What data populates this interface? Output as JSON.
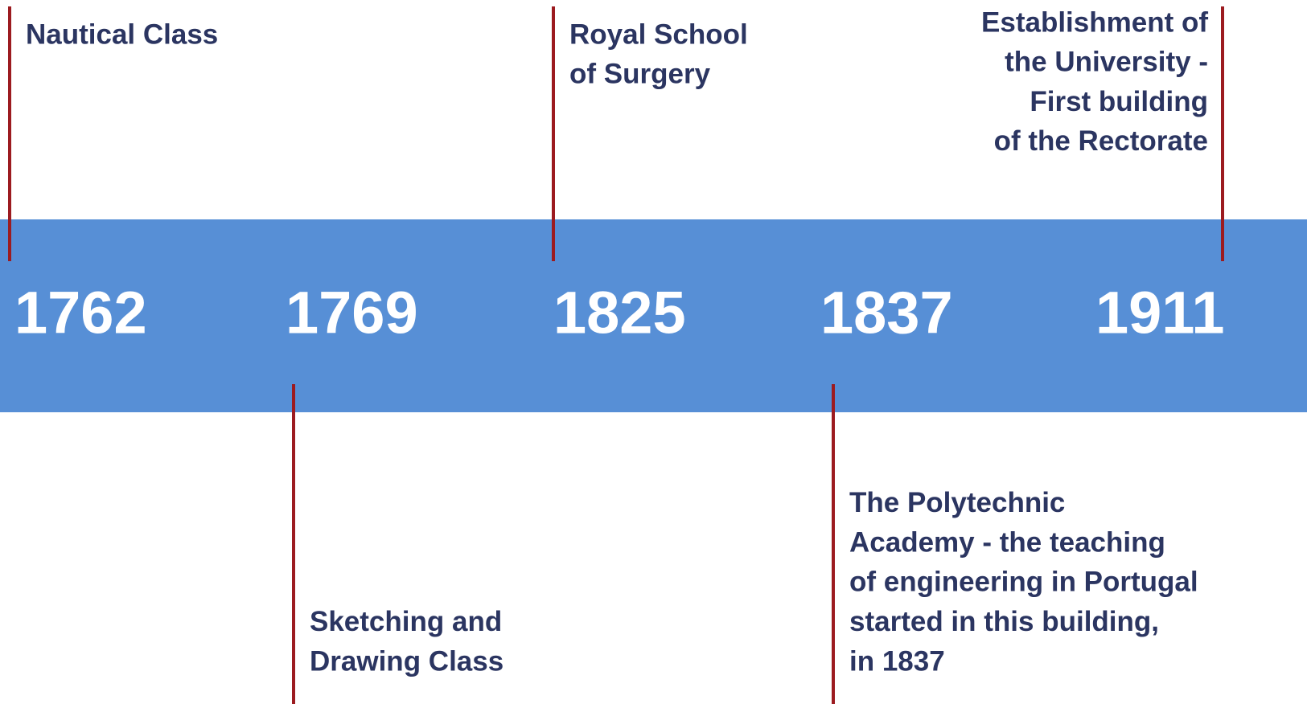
{
  "events": [
    {
      "year": "1762",
      "lines": [
        "Nautical Class"
      ]
    },
    {
      "year": "1769",
      "lines": [
        "Sketching and",
        "Drawing Class"
      ]
    },
    {
      "year": "1825",
      "lines": [
        "Royal School",
        "of Surgery"
      ]
    },
    {
      "year": "1837",
      "lines": [
        "The Polytechnic",
        "Academy - the teaching",
        "of engineering in Portugal",
        "started in this building,",
        "in 1837"
      ]
    },
    {
      "year": "1911",
      "lines": [
        "Establishment of",
        "the University -",
        "First building",
        "of the Rectorate"
      ]
    }
  ]
}
